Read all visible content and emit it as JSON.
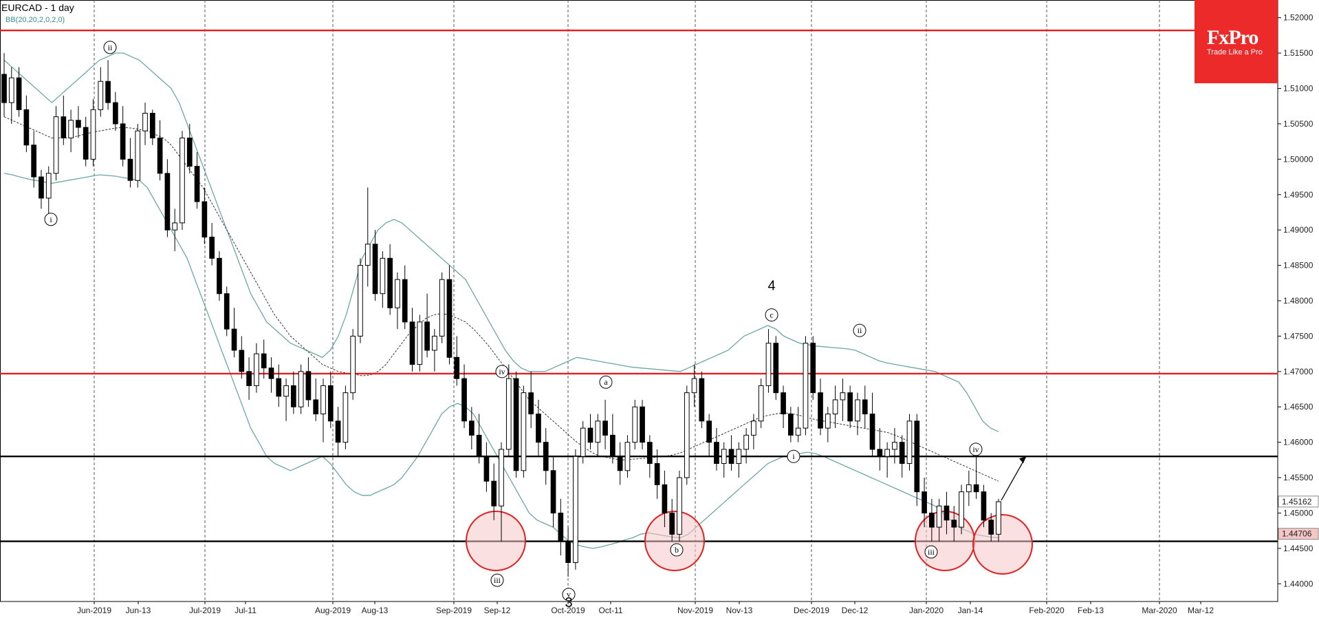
{
  "header": {
    "title": "EURCAD - 1 day",
    "indicator": "BB(20,20,2,0,2,0)"
  },
  "logo": {
    "name": "FxPro",
    "tagline": "Trade Like a Pro"
  },
  "colors": {
    "resistance": "#e31e1e",
    "support": "#000000",
    "band": "#6ba6a6",
    "candle_bear": "#000000",
    "candle_bull": "#ffffff",
    "circle": "#e31e1e",
    "circle_fill": "#f5c6c6",
    "price_tag_bg": "#f5c6c6"
  },
  "chart_data": {
    "type": "candlestick",
    "symbol": "EURCAD",
    "timeframe": "1 day",
    "ylim": [
      1.4375,
      1.5225
    ],
    "y_ticks": [
      "1.52000",
      "1.51500",
      "1.51000",
      "1.50500",
      "1.50000",
      "1.49500",
      "1.49000",
      "1.48500",
      "1.48000",
      "1.47500",
      "1.47000",
      "1.46500",
      "1.46000",
      "1.45500",
      "1.45000",
      "1.44500",
      "1.44000"
    ],
    "x_labels": [
      "Jun-2019",
      "Jun-13",
      "Jul-2019",
      "Jul-11",
      "Aug-2019",
      "Aug-13",
      "Sep-2019",
      "Sep-12",
      "Oct-2019",
      "Oct-11",
      "Nov-2019",
      "Nov-13",
      "Dec-2019",
      "Dec-12",
      "Jan-2020",
      "Jan-14",
      "Feb-2020",
      "Feb-13",
      "Mar-2020",
      "Mar-12"
    ],
    "month_dividers": [
      "Jun-2019",
      "Jul-2019",
      "Aug-2019",
      "Sep-2019",
      "Oct-2019",
      "Nov-2019",
      "Dec-2019",
      "Jan-2020",
      "Feb-2020",
      "Mar-2020"
    ],
    "horizontal_lines": [
      {
        "price": 1.5182,
        "color": "resistance"
      },
      {
        "price": 1.4697,
        "color": "resistance"
      },
      {
        "price": 1.458,
        "color": "support"
      },
      {
        "price": 1.446,
        "color": "support"
      }
    ],
    "price_tags": [
      {
        "label": "1.45162",
        "value": 1.45162
      },
      {
        "label": "1.44706",
        "value": 1.44706
      }
    ],
    "wave_labels": [
      {
        "text": "ii",
        "date": "Jun-2019",
        "price": 1.5158
      },
      {
        "text": "i",
        "date": "May-2019",
        "price": 1.4915
      },
      {
        "text": "iv",
        "date": "Sep-12",
        "price": 1.47
      },
      {
        "text": "iii",
        "date": "Sep-12",
        "price": 1.4405
      },
      {
        "text": "v",
        "date": "Oct-2019",
        "price": 1.4385
      },
      {
        "text": "a",
        "date": "Oct-11",
        "price": 1.4685
      },
      {
        "text": "b",
        "date": "Nov-2019",
        "price": 1.4448
      },
      {
        "text": "c",
        "date": "Nov-13",
        "price": 1.478
      },
      {
        "text": "i",
        "date": "Dec-2019",
        "price": 1.458
      },
      {
        "text": "ii",
        "date": "Dec-2019",
        "price": 1.4758
      },
      {
        "text": "iii",
        "date": "Jan-2020",
        "price": 1.4445
      },
      {
        "text": "iv",
        "date": "Jan-14",
        "price": 1.459
      }
    ],
    "big_labels": [
      {
        "text": "4",
        "date": "Nov-13",
        "price": 1.4815
      },
      {
        "text": "3",
        "date": "Oct-2019",
        "price": 1.4367
      }
    ],
    "candles": [
      [
        1.512,
        1.515,
        1.506,
        1.508
      ],
      [
        1.508,
        1.513,
        1.505,
        1.5115
      ],
      [
        1.5115,
        1.513,
        1.506,
        1.507
      ],
      [
        1.507,
        1.509,
        1.501,
        1.502
      ],
      [
        1.502,
        1.504,
        1.496,
        1.4975
      ],
      [
        1.4975,
        1.4985,
        1.493,
        1.4945
      ],
      [
        1.4945,
        1.499,
        1.492,
        1.498
      ],
      [
        1.498,
        1.5075,
        1.497,
        1.506
      ],
      [
        1.506,
        1.509,
        1.502,
        1.503
      ],
      [
        1.503,
        1.507,
        1.501,
        1.5055
      ],
      [
        1.5055,
        1.5075,
        1.503,
        1.5045
      ],
      [
        1.5045,
        1.506,
        1.499,
        1.5
      ],
      [
        1.5,
        1.5085,
        1.499,
        1.507
      ],
      [
        1.507,
        1.513,
        1.506,
        1.511
      ],
      [
        1.511,
        1.514,
        1.507,
        1.508
      ],
      [
        1.508,
        1.5095,
        1.504,
        1.505
      ],
      [
        1.505,
        1.5075,
        1.499,
        1.5
      ],
      [
        1.5,
        1.503,
        1.496,
        1.497
      ],
      [
        1.497,
        1.505,
        1.496,
        1.504
      ],
      [
        1.504,
        1.508,
        1.502,
        1.5065
      ],
      [
        1.5065,
        1.507,
        1.502,
        1.503
      ],
      [
        1.503,
        1.5055,
        1.497,
        1.498
      ],
      [
        1.498,
        1.5,
        1.489,
        1.49
      ],
      [
        1.49,
        1.493,
        1.487,
        1.491
      ],
      [
        1.491,
        1.504,
        1.49,
        1.503
      ],
      [
        1.503,
        1.505,
        1.498,
        1.499
      ],
      [
        1.499,
        1.501,
        1.493,
        1.494
      ],
      [
        1.494,
        1.496,
        1.488,
        1.489
      ],
      [
        1.489,
        1.491,
        1.485,
        1.486
      ],
      [
        1.486,
        1.487,
        1.48,
        1.481
      ],
      [
        1.481,
        1.482,
        1.475,
        1.476
      ],
      [
        1.476,
        1.479,
        1.472,
        1.473
      ],
      [
        1.473,
        1.475,
        1.469,
        1.47
      ],
      [
        1.47,
        1.472,
        1.466,
        1.468
      ],
      [
        1.468,
        1.474,
        1.467,
        1.4725
      ],
      [
        1.4725,
        1.4745,
        1.469,
        1.4705
      ],
      [
        1.4705,
        1.472,
        1.467,
        1.469
      ],
      [
        1.469,
        1.471,
        1.465,
        1.4665
      ],
      [
        1.4665,
        1.469,
        1.463,
        1.468
      ],
      [
        1.468,
        1.47,
        1.464,
        1.465
      ],
      [
        1.465,
        1.471,
        1.464,
        1.47
      ],
      [
        1.47,
        1.472,
        1.465,
        1.466
      ],
      [
        1.466,
        1.469,
        1.463,
        1.464
      ],
      [
        1.464,
        1.469,
        1.46,
        1.468
      ],
      [
        1.468,
        1.47,
        1.462,
        1.463
      ],
      [
        1.463,
        1.465,
        1.458,
        1.46
      ],
      [
        1.46,
        1.468,
        1.459,
        1.467
      ],
      [
        1.467,
        1.476,
        1.466,
        1.475
      ],
      [
        1.475,
        1.486,
        1.474,
        1.485
      ],
      [
        1.485,
        1.496,
        1.482,
        1.488
      ],
      [
        1.488,
        1.49,
        1.48,
        1.481
      ],
      [
        1.481,
        1.487,
        1.479,
        1.486
      ],
      [
        1.486,
        1.488,
        1.478,
        1.479
      ],
      [
        1.479,
        1.484,
        1.476,
        1.483
      ],
      [
        1.483,
        1.485,
        1.476,
        1.477
      ],
      [
        1.477,
        1.479,
        1.47,
        1.471
      ],
      [
        1.471,
        1.478,
        1.47,
        1.477
      ],
      [
        1.477,
        1.481,
        1.472,
        1.473
      ],
      [
        1.473,
        1.476,
        1.47,
        1.475
      ],
      [
        1.475,
        1.484,
        1.474,
        1.483
      ],
      [
        1.483,
        1.485,
        1.471,
        1.472
      ],
      [
        1.472,
        1.475,
        1.468,
        1.469
      ],
      [
        1.469,
        1.471,
        1.462,
        1.463
      ],
      [
        1.463,
        1.465,
        1.459,
        1.461
      ],
      [
        1.461,
        1.464,
        1.457,
        1.458
      ],
      [
        1.458,
        1.46,
        1.453,
        1.4545
      ],
      [
        1.4545,
        1.457,
        1.449,
        1.451
      ],
      [
        1.451,
        1.46,
        1.446,
        1.459
      ],
      [
        1.459,
        1.471,
        1.458,
        1.469
      ],
      [
        1.469,
        1.47,
        1.455,
        1.456
      ],
      [
        1.456,
        1.468,
        1.455,
        1.467
      ],
      [
        1.467,
        1.47,
        1.462,
        1.464
      ],
      [
        1.464,
        1.466,
        1.458,
        1.46
      ],
      [
        1.46,
        1.462,
        1.454,
        1.456
      ],
      [
        1.456,
        1.458,
        1.448,
        1.45
      ],
      [
        1.45,
        1.452,
        1.444,
        1.446
      ],
      [
        1.446,
        1.448,
        1.441,
        1.443
      ],
      [
        1.443,
        1.459,
        1.442,
        1.458
      ],
      [
        1.458,
        1.463,
        1.457,
        1.462
      ],
      [
        1.462,
        1.464,
        1.459,
        1.46
      ],
      [
        1.46,
        1.464,
        1.458,
        1.463
      ],
      [
        1.463,
        1.466,
        1.459,
        1.461
      ],
      [
        1.461,
        1.464,
        1.457,
        1.458
      ],
      [
        1.458,
        1.46,
        1.454,
        1.456
      ],
      [
        1.456,
        1.461,
        1.455,
        1.46
      ],
      [
        1.46,
        1.466,
        1.459,
        1.465
      ],
      [
        1.465,
        1.466,
        1.459,
        1.46
      ],
      [
        1.46,
        1.461,
        1.455,
        1.457
      ],
      [
        1.457,
        1.459,
        1.452,
        1.454
      ],
      [
        1.454,
        1.456,
        1.448,
        1.45
      ],
      [
        1.45,
        1.452,
        1.446,
        1.447
      ],
      [
        1.447,
        1.456,
        1.446,
        1.455
      ],
      [
        1.455,
        1.468,
        1.454,
        1.467
      ],
      [
        1.467,
        1.471,
        1.465,
        1.469
      ],
      [
        1.469,
        1.47,
        1.462,
        1.463
      ],
      [
        1.463,
        1.464,
        1.458,
        1.46
      ],
      [
        1.46,
        1.462,
        1.456,
        1.457
      ],
      [
        1.457,
        1.46,
        1.455,
        1.459
      ],
      [
        1.459,
        1.461,
        1.456,
        1.457
      ],
      [
        1.457,
        1.46,
        1.455,
        1.459
      ],
      [
        1.459,
        1.462,
        1.457,
        1.461
      ],
      [
        1.461,
        1.464,
        1.459,
        1.463
      ],
      [
        1.463,
        1.469,
        1.462,
        1.468
      ],
      [
        1.468,
        1.476,
        1.467,
        1.474
      ],
      [
        1.474,
        1.475,
        1.466,
        1.467
      ],
      [
        1.467,
        1.468,
        1.462,
        1.464
      ],
      [
        1.464,
        1.465,
        1.46,
        1.461
      ],
      [
        1.461,
        1.465,
        1.46,
        1.462
      ],
      [
        1.462,
        1.475,
        1.461,
        1.474
      ],
      [
        1.474,
        1.475,
        1.466,
        1.467
      ],
      [
        1.467,
        1.469,
        1.461,
        1.462
      ],
      [
        1.462,
        1.465,
        1.46,
        1.464
      ],
      [
        1.464,
        1.468,
        1.462,
        1.466
      ],
      [
        1.466,
        1.469,
        1.463,
        1.467
      ],
      [
        1.467,
        1.468,
        1.462,
        1.463
      ],
      [
        1.463,
        1.467,
        1.461,
        1.466
      ],
      [
        1.466,
        1.468,
        1.462,
        1.464
      ],
      [
        1.464,
        1.467,
        1.458,
        1.459
      ],
      [
        1.459,
        1.462,
        1.456,
        1.458
      ],
      [
        1.458,
        1.46,
        1.455,
        1.459
      ],
      [
        1.459,
        1.462,
        1.457,
        1.46
      ],
      [
        1.46,
        1.461,
        1.455,
        1.457
      ],
      [
        1.457,
        1.464,
        1.456,
        1.463
      ],
      [
        1.463,
        1.464,
        1.451,
        1.453
      ],
      [
        1.453,
        1.455,
        1.448,
        1.45
      ],
      [
        1.45,
        1.452,
        1.446,
        1.448
      ],
      [
        1.448,
        1.452,
        1.446,
        1.451
      ],
      [
        1.451,
        1.453,
        1.447,
        1.449
      ],
      [
        1.449,
        1.451,
        1.446,
        1.448
      ],
      [
        1.448,
        1.454,
        1.447,
        1.453
      ],
      [
        1.453,
        1.456,
        1.451,
        1.454
      ],
      [
        1.454,
        1.458,
        1.452,
        1.453
      ],
      [
        1.453,
        1.454,
        1.448,
        1.449
      ],
      [
        1.449,
        1.45,
        1.446,
        1.447
      ],
      [
        1.447,
        1.452,
        1.446,
        1.4516
      ]
    ],
    "bollinger": {
      "upper": [
        1.514,
        1.513,
        1.512,
        1.511,
        1.51,
        1.509,
        1.508,
        1.509,
        1.51,
        1.511,
        1.512,
        1.513,
        1.514,
        1.5145,
        1.515,
        1.515,
        1.5145,
        1.514,
        1.513,
        1.512,
        1.511,
        1.51,
        1.508,
        1.505,
        1.502,
        1.499,
        1.496,
        1.493,
        1.49,
        1.487,
        1.484,
        1.481,
        1.479,
        1.477,
        1.476,
        1.475,
        1.474,
        1.4735,
        1.473,
        1.4725,
        1.472,
        1.473,
        1.475,
        1.478,
        1.482,
        1.486,
        1.488,
        1.49,
        1.491,
        1.4915,
        1.491,
        1.49,
        1.489,
        1.488,
        1.487,
        1.486,
        1.485,
        1.484,
        1.483,
        1.481,
        1.479,
        1.477,
        1.475,
        1.473,
        1.4715,
        1.4705,
        1.47,
        1.47,
        1.47,
        1.4705,
        1.471,
        1.4715,
        1.472,
        1.4718,
        1.4716,
        1.4714,
        1.4712,
        1.471,
        1.4708,
        1.4706,
        1.4705,
        1.4704,
        1.4703,
        1.4702,
        1.4701,
        1.47,
        1.4705,
        1.471,
        1.4715,
        1.472,
        1.4725,
        1.473,
        1.474,
        1.475,
        1.4755,
        1.476,
        1.4765,
        1.476,
        1.475,
        1.4745,
        1.474,
        1.4738,
        1.4736,
        1.4735,
        1.4734,
        1.4733,
        1.4732,
        1.473,
        1.4725,
        1.472,
        1.4715,
        1.4712,
        1.471,
        1.4708,
        1.4706,
        1.4704,
        1.4702,
        1.47,
        1.4695,
        1.469,
        1.4685,
        1.467,
        1.465,
        1.463,
        1.462,
        1.4615
      ],
      "middle": [
        1.506,
        1.5055,
        1.505,
        1.5045,
        1.504,
        1.5035,
        1.503,
        1.503,
        1.503,
        1.5032,
        1.5035,
        1.5038,
        1.504,
        1.5042,
        1.5044,
        1.5045,
        1.5044,
        1.5042,
        1.504,
        1.5035,
        1.503,
        1.502,
        1.5005,
        1.499,
        1.4975,
        1.496,
        1.494,
        1.492,
        1.49,
        1.488,
        1.486,
        1.484,
        1.482,
        1.48,
        1.478,
        1.4765,
        1.475,
        1.474,
        1.473,
        1.472,
        1.471,
        1.4705,
        1.47,
        1.4698,
        1.4696,
        1.4694,
        1.4695,
        1.47,
        1.471,
        1.4725,
        1.474,
        1.4755,
        1.4765,
        1.4775,
        1.478,
        1.4782,
        1.478,
        1.4775,
        1.477,
        1.476,
        1.4748,
        1.4735,
        1.472,
        1.4705,
        1.469,
        1.4675,
        1.466,
        1.465,
        1.464,
        1.463,
        1.462,
        1.461,
        1.46,
        1.4592,
        1.4585,
        1.458,
        1.4578,
        1.4576,
        1.4575,
        1.4576,
        1.4577,
        1.4578,
        1.4579,
        1.458,
        1.4582,
        1.4585,
        1.459,
        1.4595,
        1.46,
        1.4605,
        1.461,
        1.4615,
        1.462,
        1.4625,
        1.463,
        1.4635,
        1.4638,
        1.464,
        1.4642,
        1.464,
        1.4638,
        1.4635,
        1.4632,
        1.463,
        1.4628,
        1.4626,
        1.4624,
        1.4622,
        1.462,
        1.4618,
        1.4616,
        1.4614,
        1.461,
        1.4605,
        1.46,
        1.4595,
        1.459,
        1.4585,
        1.458,
        1.4575,
        1.457,
        1.4565,
        1.456,
        1.4555,
        1.455,
        1.4545
      ],
      "lower": [
        1.498,
        1.4978,
        1.4975,
        1.4972,
        1.497,
        1.4968,
        1.4966,
        1.4968,
        1.497,
        1.4972,
        1.4974,
        1.4976,
        1.4978,
        1.4977,
        1.4976,
        1.4974,
        1.4972,
        1.497,
        1.496,
        1.494,
        1.492,
        1.49,
        1.488,
        1.486,
        1.483,
        1.48,
        1.477,
        1.474,
        1.471,
        1.468,
        1.465,
        1.462,
        1.46,
        1.458,
        1.457,
        1.4565,
        1.456,
        1.4565,
        1.457,
        1.4575,
        1.458,
        1.457,
        1.4555,
        1.454,
        1.453,
        1.4525,
        1.4525,
        1.453,
        1.4535,
        1.454,
        1.455,
        1.4565,
        1.458,
        1.46,
        1.462,
        1.464,
        1.465,
        1.4655,
        1.465,
        1.464,
        1.462,
        1.46,
        1.458,
        1.456,
        1.454,
        1.452,
        1.45,
        1.449,
        1.4485,
        1.448,
        1.447,
        1.446,
        1.4455,
        1.4452,
        1.445,
        1.4452,
        1.4455,
        1.4458,
        1.4462,
        1.4465,
        1.447,
        1.4472,
        1.447,
        1.4468,
        1.4466,
        1.4465,
        1.447,
        1.448,
        1.449,
        1.45,
        1.451,
        1.452,
        1.453,
        1.454,
        1.455,
        1.456,
        1.457,
        1.4575,
        1.458,
        1.4582,
        1.4584,
        1.4586,
        1.4584,
        1.458,
        1.4575,
        1.457,
        1.4565,
        1.456,
        1.4555,
        1.455,
        1.4545,
        1.454,
        1.4535,
        1.453,
        1.4525,
        1.452,
        1.4515,
        1.451,
        1.45,
        1.449,
        1.448,
        1.4475,
        1.447,
        1.4468,
        1.4466,
        1.4465
      ]
    }
  }
}
